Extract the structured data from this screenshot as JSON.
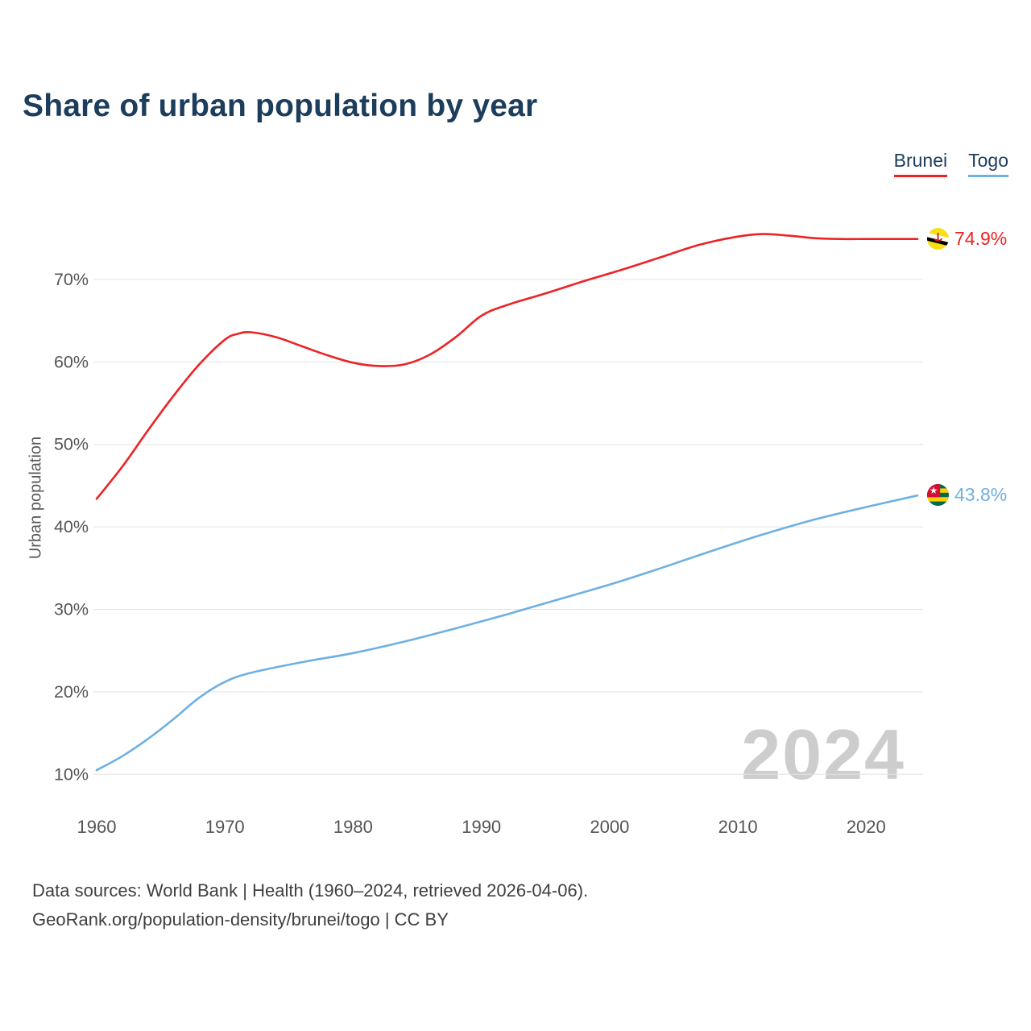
{
  "page": {
    "title": "Share of urban population by year",
    "watermark": "2024",
    "footer_line1": "Data sources: World Bank | Health (1960–2024, retrieved 2026-04-06).",
    "footer_line2": "GeoRank.org/population-density/brunei/togo | CC BY"
  },
  "legend": {
    "items": [
      {
        "label": "Brunei",
        "color": "#ed2224"
      },
      {
        "label": "Togo",
        "color": "#6fb0e2"
      }
    ]
  },
  "colors": {
    "title": "#1d3d5c",
    "tick_label": "#555555",
    "gridline": "#e4e4e4",
    "watermark": "#cdcdcd",
    "footer": "#3f3f3f"
  },
  "chart_data": {
    "type": "line",
    "title": "Share of urban population by year",
    "xlabel": "",
    "ylabel": "Urban population",
    "grid": true,
    "legend_position": "top-right",
    "xlim": [
      1960,
      2024
    ],
    "ylim": [
      7.2,
      78
    ],
    "xticks": [
      1960,
      1970,
      1980,
      1990,
      2000,
      2010,
      2020
    ],
    "yticks": [
      10,
      20,
      30,
      40,
      50,
      60,
      70
    ],
    "ytick_suffix": "%",
    "series": [
      {
        "name": "Brunei",
        "color": "#ed2224",
        "end_label": "74.9%",
        "end_value": 74.9,
        "x": [
          1960,
          1962,
          1964,
          1966,
          1968,
          1970,
          1971,
          1972,
          1974,
          1976,
          1978,
          1980,
          1982,
          1984,
          1986,
          1988,
          1990,
          1992,
          1995,
          1998,
          2001,
          2004,
          2007,
          2010,
          2012,
          2014,
          2016,
          2018,
          2020,
          2022,
          2024
        ],
        "y": [
          43.4,
          47.3,
          51.7,
          55.9,
          59.7,
          62.7,
          63.4,
          63.6,
          63.0,
          61.9,
          60.8,
          59.9,
          59.5,
          59.7,
          60.9,
          63.0,
          65.6,
          66.9,
          68.3,
          69.8,
          71.2,
          72.7,
          74.2,
          75.2,
          75.5,
          75.3,
          75.0,
          74.9,
          74.9,
          74.9,
          74.9
        ]
      },
      {
        "name": "Togo",
        "color": "#6fb0e2",
        "end_label": "43.8%",
        "end_value": 43.8,
        "x": [
          1960,
          1962,
          1964,
          1966,
          1968,
          1970,
          1972,
          1976,
          1980,
          1984,
          1988,
          1992,
          1996,
          2000,
          2004,
          2008,
          2012,
          2016,
          2020,
          2024
        ],
        "y": [
          10.5,
          12.2,
          14.3,
          16.7,
          19.3,
          21.2,
          22.3,
          23.6,
          24.7,
          26.1,
          27.7,
          29.4,
          31.2,
          33.0,
          35.0,
          37.1,
          39.1,
          40.9,
          42.4,
          43.8
        ]
      }
    ]
  }
}
